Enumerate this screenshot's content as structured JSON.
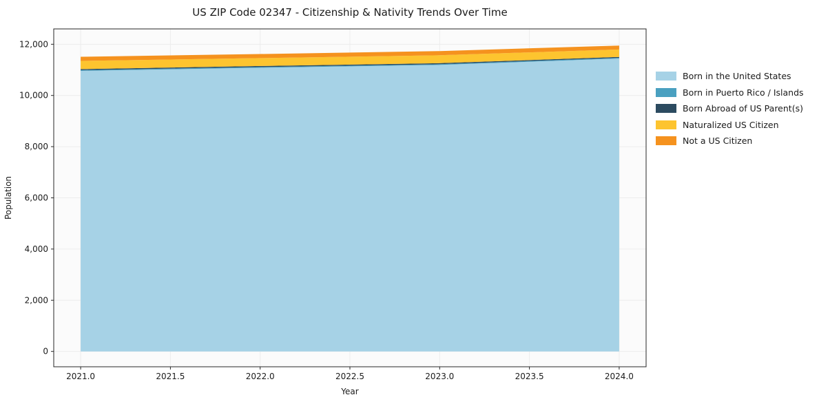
{
  "chart_data": {
    "type": "area",
    "stacked": true,
    "title": "US ZIP Code 02347 - Citizenship & Nativity Trends Over Time",
    "xlabel": "Year",
    "ylabel": "Population",
    "x": [
      2021,
      2022,
      2023,
      2024
    ],
    "series": [
      {
        "name": "Born in the United States",
        "color": "#a6d2e6",
        "values": [
          10960,
          11080,
          11190,
          11440
        ]
      },
      {
        "name": "Born in Puerto Rico / Islands",
        "color": "#4aa0c0",
        "values": [
          30,
          30,
          30,
          30
        ]
      },
      {
        "name": "Born Abroad of US Parent(s)",
        "color": "#2c4b60",
        "values": [
          40,
          40,
          40,
          35
        ]
      },
      {
        "name": "Naturalized US Citizen",
        "color": "#fdc42f",
        "values": [
          320,
          310,
          310,
          290
        ]
      },
      {
        "name": "Not a US Citizen",
        "color": "#f5921e",
        "values": [
          160,
          160,
          165,
          155
        ]
      }
    ],
    "xlim": [
      2020.85,
      2024.15
    ],
    "ylim": [
      -600,
      12600
    ],
    "x_ticks": [
      {
        "v": 2021.0,
        "label": "2021.0"
      },
      {
        "v": 2021.5,
        "label": "2021.5"
      },
      {
        "v": 2022.0,
        "label": "2022.0"
      },
      {
        "v": 2022.5,
        "label": "2022.5"
      },
      {
        "v": 2023.0,
        "label": "2023.0"
      },
      {
        "v": 2023.5,
        "label": "2023.5"
      },
      {
        "v": 2024.0,
        "label": "2024.0"
      }
    ],
    "y_ticks": [
      {
        "v": 0,
        "label": "0"
      },
      {
        "v": 2000,
        "label": "2,000"
      },
      {
        "v": 4000,
        "label": "4,000"
      },
      {
        "v": 6000,
        "label": "6,000"
      },
      {
        "v": 8000,
        "label": "8,000"
      },
      {
        "v": 10000,
        "label": "10,000"
      },
      {
        "v": 12000,
        "label": "12,000"
      }
    ],
    "grid": true,
    "grid_color": "#ececec",
    "plot_bg": "#fbfbfb",
    "spine_color": "#262626",
    "text_color": "#1a1a1a",
    "legend_position": "right-outside"
  }
}
